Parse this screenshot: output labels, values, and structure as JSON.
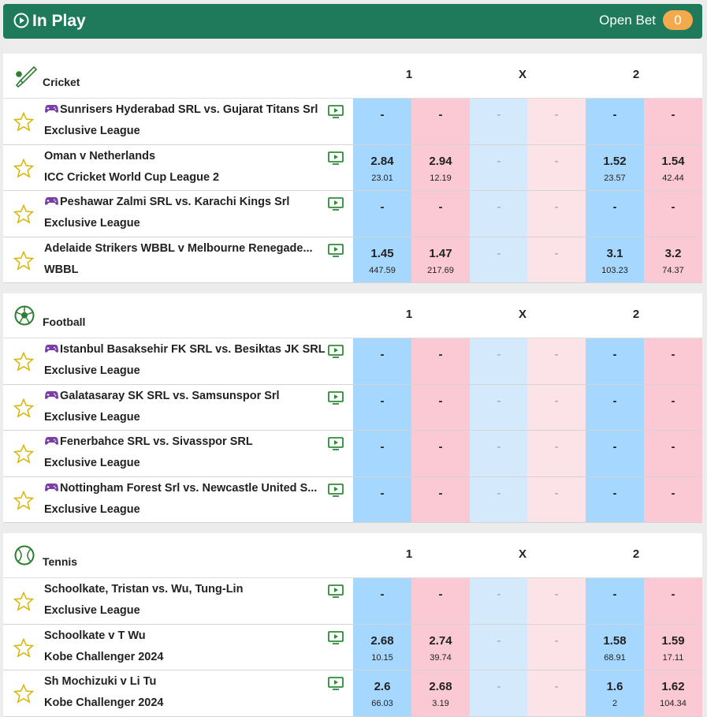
{
  "header": {
    "title": "In Play",
    "open_bet_label": "Open Bet",
    "open_bet_count": 0
  },
  "sections": [
    {
      "sport": "Cricket",
      "columns": [
        "1",
        "X",
        "2"
      ],
      "events": [
        {
          "name": "Sunrisers Hyderabad SRL vs. Gujarat Titans Srl",
          "league": "Exclusive League",
          "virtual": true,
          "odds": [
            {
              "price": "-"
            },
            {
              "price": "-"
            },
            {
              "price": "-"
            },
            {
              "price": "-"
            },
            {
              "price": "-"
            },
            {
              "price": "-"
            }
          ]
        },
        {
          "name": "Oman v Netherlands",
          "league": "ICC Cricket World Cup League 2",
          "virtual": false,
          "odds": [
            {
              "price": 2.84,
              "size": 23.01
            },
            {
              "price": 2.94,
              "size": 12.19
            },
            {
              "price": "-"
            },
            {
              "price": "-"
            },
            {
              "price": 1.52,
              "size": 23.57
            },
            {
              "price": 1.54,
              "size": 42.44
            }
          ]
        },
        {
          "name": "Peshawar Zalmi SRL vs. Karachi Kings Srl",
          "league": "Exclusive League",
          "virtual": true,
          "odds": [
            {
              "price": "-"
            },
            {
              "price": "-"
            },
            {
              "price": "-"
            },
            {
              "price": "-"
            },
            {
              "price": "-"
            },
            {
              "price": "-"
            }
          ]
        },
        {
          "name": "Adelaide Strikers WBBL v Melbourne Renegade...",
          "league": "WBBL",
          "virtual": false,
          "odds": [
            {
              "price": 1.45,
              "size": 447.59
            },
            {
              "price": 1.47,
              "size": 217.69
            },
            {
              "price": "-"
            },
            {
              "price": "-"
            },
            {
              "price": 3.1,
              "size": 103.23
            },
            {
              "price": 3.2,
              "size": 74.37
            }
          ]
        }
      ]
    },
    {
      "sport": "Football",
      "columns": [
        "1",
        "X",
        "2"
      ],
      "events": [
        {
          "name": "Istanbul Basaksehir FK SRL vs. Besiktas JK SRL",
          "league": "Exclusive League",
          "virtual": true,
          "odds": [
            {
              "price": "-"
            },
            {
              "price": "-"
            },
            {
              "price": "-"
            },
            {
              "price": "-"
            },
            {
              "price": "-"
            },
            {
              "price": "-"
            }
          ]
        },
        {
          "name": "Galatasaray SK SRL vs. Samsunspor Srl",
          "league": "Exclusive League",
          "virtual": true,
          "odds": [
            {
              "price": "-"
            },
            {
              "price": "-"
            },
            {
              "price": "-"
            },
            {
              "price": "-"
            },
            {
              "price": "-"
            },
            {
              "price": "-"
            }
          ]
        },
        {
          "name": "Fenerbahce SRL vs. Sivasspor SRL",
          "league": "Exclusive League",
          "virtual": true,
          "odds": [
            {
              "price": "-"
            },
            {
              "price": "-"
            },
            {
              "price": "-"
            },
            {
              "price": "-"
            },
            {
              "price": "-"
            },
            {
              "price": "-"
            }
          ]
        },
        {
          "name": "Nottingham Forest Srl vs. Newcastle United S...",
          "league": "Exclusive League",
          "virtual": true,
          "odds": [
            {
              "price": "-"
            },
            {
              "price": "-"
            },
            {
              "price": "-"
            },
            {
              "price": "-"
            },
            {
              "price": "-"
            },
            {
              "price": "-"
            }
          ]
        }
      ]
    },
    {
      "sport": "Tennis",
      "columns": [
        "1",
        "X",
        "2"
      ],
      "events": [
        {
          "name": "Schoolkate, Tristan vs. Wu, Tung-Lin",
          "league": "Exclusive League",
          "virtual": false,
          "odds": [
            {
              "price": "-"
            },
            {
              "price": "-"
            },
            {
              "price": "-"
            },
            {
              "price": "-"
            },
            {
              "price": "-"
            },
            {
              "price": "-"
            }
          ]
        },
        {
          "name": "Schoolkate v T Wu",
          "league": "Kobe Challenger 2024",
          "virtual": false,
          "odds": [
            {
              "price": 2.68,
              "size": 10.15
            },
            {
              "price": 2.74,
              "size": 39.74
            },
            {
              "price": "-"
            },
            {
              "price": "-"
            },
            {
              "price": 1.58,
              "size": 68.91
            },
            {
              "price": 1.59,
              "size": 17.11
            }
          ]
        },
        {
          "name": "Sh Mochizuki v Li Tu",
          "league": "Kobe Challenger 2024",
          "virtual": false,
          "odds": [
            {
              "price": 2.6,
              "size": 66.03
            },
            {
              "price": 2.68,
              "size": 3.19
            },
            {
              "price": "-"
            },
            {
              "price": "-"
            },
            {
              "price": 1.6,
              "size": 2
            },
            {
              "price": 1.62,
              "size": 104.34
            }
          ]
        }
      ]
    }
  ]
}
